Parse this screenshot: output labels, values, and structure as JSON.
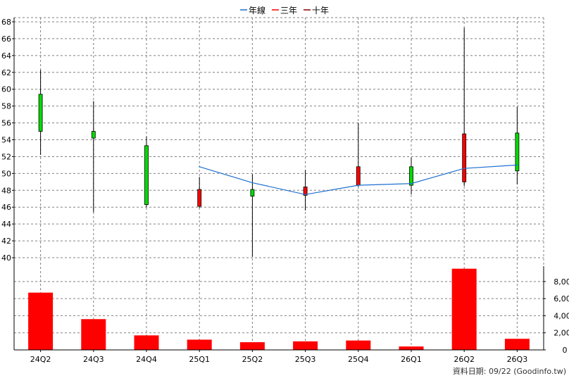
{
  "colors": {
    "background": "#ffffff",
    "grid": "#808080",
    "axis": "#000000",
    "line_series": "#1e6fd0",
    "candle_up": "#ff0000",
    "candle_down": "#00dd00",
    "volume_bar": "#ff0000",
    "legend_sanian": "#ff0000",
    "legend_shinian": "#8b0000"
  },
  "legend": [
    "年線",
    "三年",
    "十年"
  ],
  "source_note": "資料日期: 09/22  (Goodinfo.tw)",
  "chart_data": [
    {
      "type": "candlestick",
      "title": "",
      "categories": [
        "24Q2",
        "24Q3",
        "24Q4",
        "25Q1",
        "25Q2",
        "25Q3",
        "25Q4",
        "26Q1",
        "26Q2",
        "26Q3"
      ],
      "ylim": [
        39,
        68.5
      ],
      "yticks": [
        40,
        42,
        44,
        46,
        48,
        50,
        52,
        54,
        56,
        58,
        60,
        62,
        64,
        66,
        68
      ],
      "grid": true,
      "legend_position": "top-center",
      "candles": [
        {
          "open": 59.4,
          "close": 55.0,
          "high": 62.3,
          "low": 52.2
        },
        {
          "open": 55.0,
          "close": 54.2,
          "high": 58.6,
          "low": 45.4
        },
        {
          "open": 53.3,
          "close": 46.3,
          "high": 54.4,
          "low": 46.0
        },
        {
          "open": 46.1,
          "close": 48.1,
          "high": 49.6,
          "low": 45.9
        },
        {
          "open": 48.1,
          "close": 47.3,
          "high": 49.9,
          "low": 40.1
        },
        {
          "open": 47.4,
          "close": 48.4,
          "high": 50.4,
          "low": 45.6
        },
        {
          "open": 48.6,
          "close": 50.8,
          "high": 56.0,
          "low": 48.4
        },
        {
          "open": 50.8,
          "close": 48.6,
          "high": 51.9,
          "low": 47.5
        },
        {
          "open": 49.0,
          "close": 54.7,
          "high": 67.3,
          "low": 48.5
        },
        {
          "open": 54.8,
          "close": 50.3,
          "high": 57.9,
          "low": 48.7
        }
      ],
      "series": [
        {
          "name": "年線",
          "values": [
            null,
            null,
            null,
            50.8,
            48.9,
            47.5,
            48.6,
            48.8,
            50.6,
            51.0
          ]
        }
      ]
    },
    {
      "type": "bar",
      "title": "",
      "categories": [
        "24Q2",
        "24Q3",
        "24Q4",
        "25Q1",
        "25Q2",
        "25Q3",
        "25Q4",
        "26Q1",
        "26Q2",
        "26Q3"
      ],
      "values": [
        6700,
        3600,
        1700,
        1200,
        900,
        1000,
        1100,
        400,
        9500,
        1300
      ],
      "ylim": [
        0,
        9800
      ],
      "yticks": [
        0,
        2000,
        4000,
        6000,
        8000
      ],
      "ytick_labels": [
        "0",
        "2,000",
        "4,000",
        "6,000",
        "8,000"
      ],
      "grid": true
    }
  ]
}
